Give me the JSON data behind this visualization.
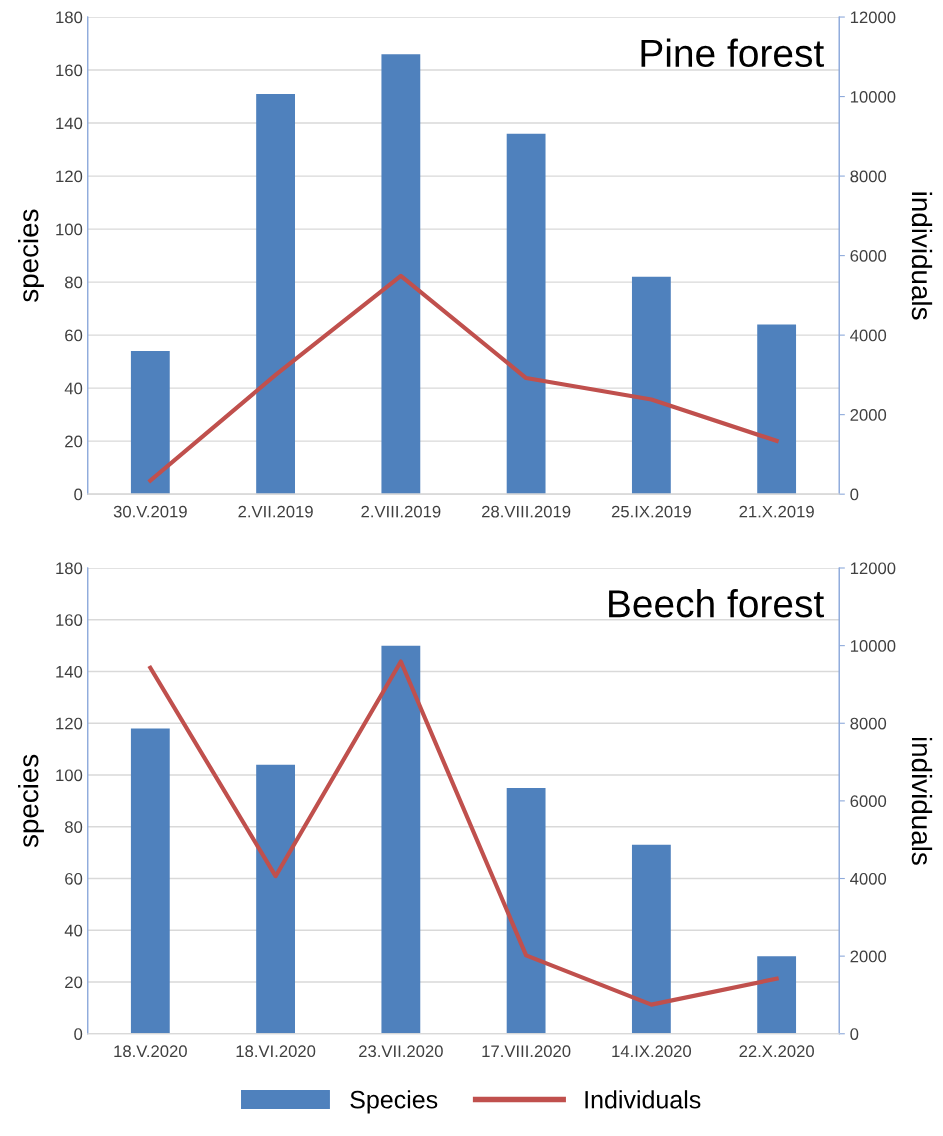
{
  "chart_data": [
    {
      "type": "bar",
      "title": "Pine forest",
      "ylabel": "species",
      "y2label": "individuals",
      "categories": [
        "30.V.2019",
        "2.VII.2019",
        "2.VIII.2019",
        "28.VIII.2019",
        "25.IX.2019",
        "21.X.2019"
      ],
      "series": [
        {
          "color": "#4f81bd",
          "values": [
            54,
            151,
            166,
            136,
            82,
            64
          ]
        },
        {
          "type": "line",
          "axis": "y2",
          "color": "#c0504d",
          "values": [
            340,
            3000,
            5490,
            2920,
            2380,
            1340
          ]
        }
      ],
      "ylim": [
        0,
        180
      ],
      "yticks": [
        0,
        20,
        40,
        60,
        80,
        100,
        120,
        140,
        160,
        180
      ],
      "y2lim": [
        0,
        12000
      ],
      "y2ticks": [
        0,
        2000,
        4000,
        6000,
        8000,
        10000,
        12000
      ],
      "grid": "y",
      "marker": "none",
      "line_style": "solid"
    },
    {
      "type": "bar",
      "title": "Beech forest",
      "ylabel": "species",
      "y2label": "individuals",
      "categories": [
        "18.V.2020",
        "18.VI.2020",
        "23.VII.2020",
        "17.VIII.2020",
        "14.IX.2020",
        "22.X.2020"
      ],
      "series": [
        {
          "name": "Species",
          "color": "#4f81bd",
          "values": [
            118,
            104,
            150,
            95,
            73,
            30
          ]
        },
        {
          "name": "Individuals",
          "type": "line",
          "axis": "y2",
          "color": "#c0504d",
          "values": [
            9430,
            4060,
            9590,
            2020,
            750,
            1420
          ]
        }
      ],
      "ylim": [
        0,
        180
      ],
      "yticks": [
        0,
        20,
        40,
        60,
        80,
        100,
        120,
        140,
        160,
        180
      ],
      "y2lim": [
        0,
        12000
      ],
      "y2ticks": [
        0,
        2000,
        4000,
        6000,
        8000,
        10000,
        12000
      ],
      "grid": "y",
      "legend": "bottom",
      "marker": "none",
      "line_style": "solid"
    }
  ]
}
